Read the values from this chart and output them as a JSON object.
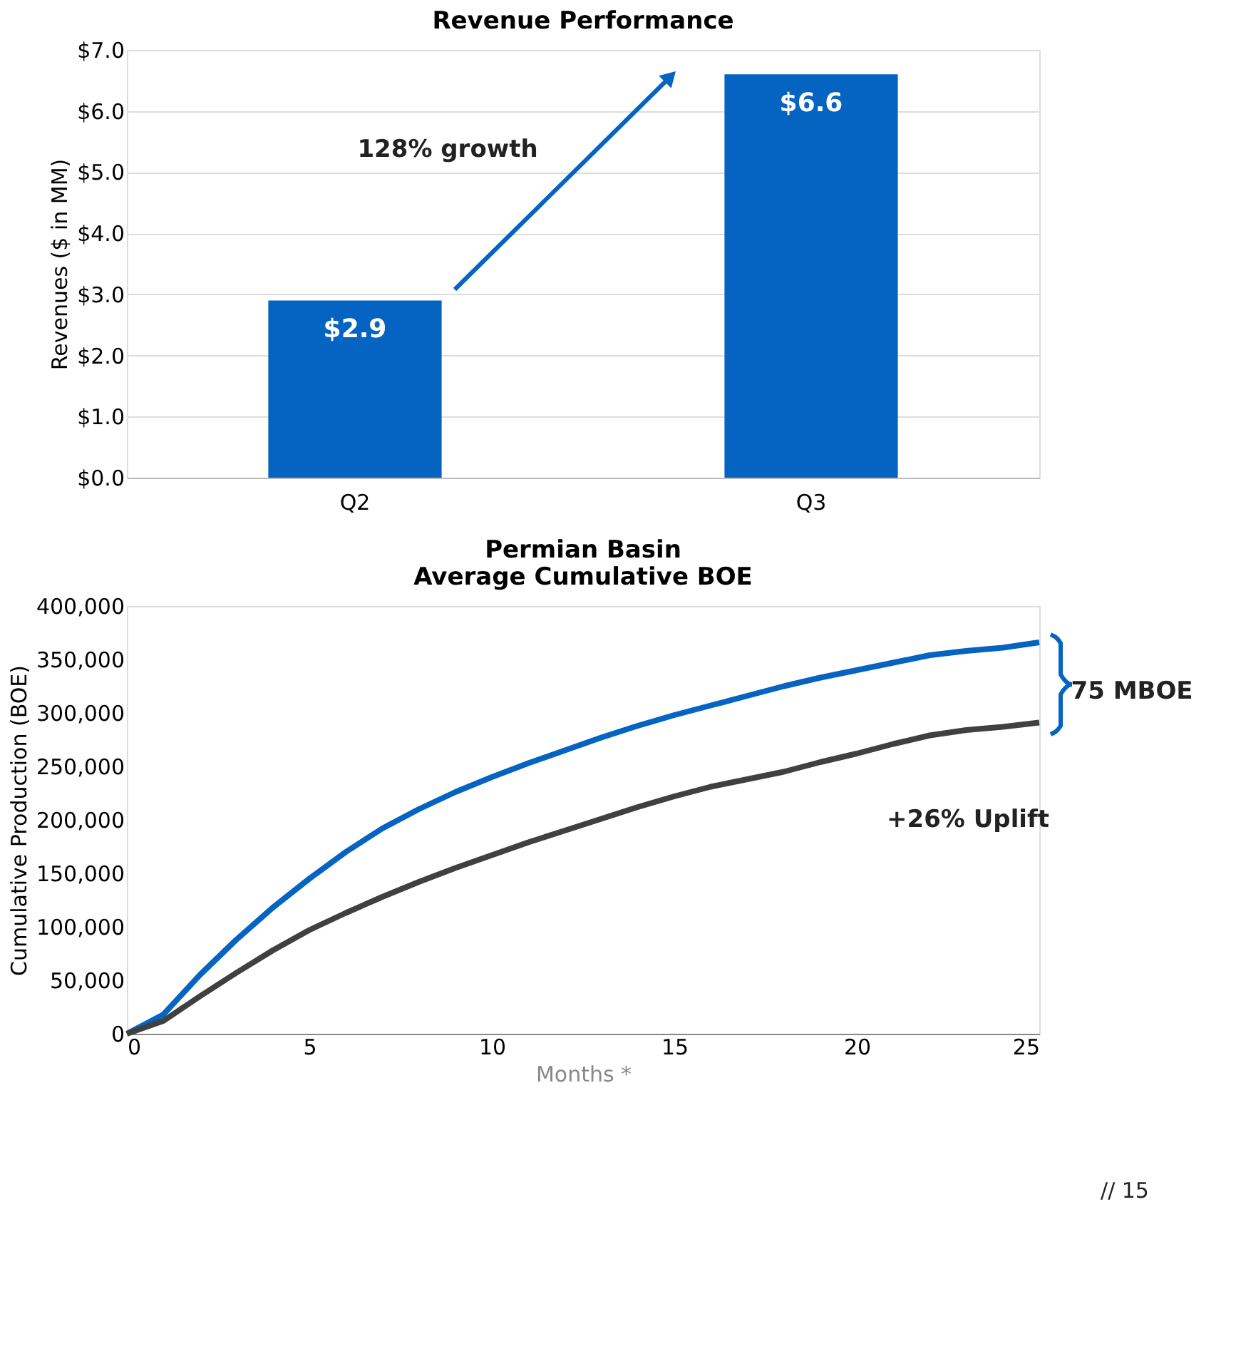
{
  "chart_data": [
    {
      "type": "bar",
      "title": "Revenue Performance",
      "ylabel": "Revenues ($ in MM)",
      "categories": [
        "Q2",
        "Q3"
      ],
      "values": [
        2.9,
        6.6
      ],
      "color": "#0563c1",
      "value_labels": [
        "$2.9",
        "$6.6"
      ],
      "ylim": [
        0,
        7
      ],
      "yticks": [
        {
          "value": 0,
          "label": "$0.0"
        },
        {
          "value": 1,
          "label": "$1.0"
        },
        {
          "value": 2,
          "label": "$2.0"
        },
        {
          "value": 3,
          "label": "$3.0"
        },
        {
          "value": 4,
          "label": "$4.0"
        },
        {
          "value": 5,
          "label": "$5.0"
        },
        {
          "value": 6,
          "label": "$6.0"
        },
        {
          "value": 7,
          "label": "$7.0"
        }
      ],
      "grid": "y",
      "annotations": [
        "128% growth"
      ]
    },
    {
      "type": "line",
      "title": "Permian Basin\nAverage Cumulative BOE",
      "xlabel": "Months *",
      "ylabel": "Cumulative Production (BOE)",
      "x": [
        0,
        1,
        2,
        3,
        4,
        5,
        6,
        7,
        8,
        9,
        10,
        11,
        12,
        13,
        14,
        15,
        16,
        17,
        18,
        19,
        20,
        21,
        22,
        23,
        24,
        25
      ],
      "series": [
        {
          "color": "#0563c1",
          "values": [
            0,
            18000,
            55000,
            88000,
            118000,
            145000,
            170000,
            192000,
            210000,
            226000,
            240000,
            253000,
            265000,
            277000,
            288000,
            298000,
            307000,
            316000,
            325000,
            333000,
            340000,
            347000,
            354000,
            358000,
            361000,
            366000
          ]
        },
        {
          "color": "#404040",
          "values": [
            0,
            12000,
            35000,
            57000,
            78000,
            97000,
            113000,
            128000,
            142000,
            155000,
            167000,
            179000,
            190000,
            201000,
            212000,
            222000,
            231000,
            238000,
            245000,
            254000,
            262000,
            271000,
            279000,
            284000,
            287000,
            291000
          ]
        }
      ],
      "xlim": [
        0,
        25
      ],
      "xticks": [
        0,
        5,
        10,
        15,
        20,
        25
      ],
      "ylim": [
        0,
        400000
      ],
      "yticks": [
        0,
        {
          "value": 50000,
          "label": "50,000"
        },
        {
          "value": 100000,
          "label": "100,000"
        },
        {
          "value": 150000,
          "label": "150,000"
        },
        {
          "value": 200000,
          "label": "200,000"
        },
        {
          "value": 250000,
          "label": "250,000"
        },
        {
          "value": 300000,
          "label": "300,000"
        },
        {
          "value": 350000,
          "label": "350,000"
        },
        {
          "value": 400000,
          "label": "400,000"
        }
      ],
      "grid": false,
      "line_style": "solid",
      "marker": "none",
      "annotations": [
        "75 MBOE",
        "+26% Uplift",
        "// 15"
      ]
    }
  ]
}
